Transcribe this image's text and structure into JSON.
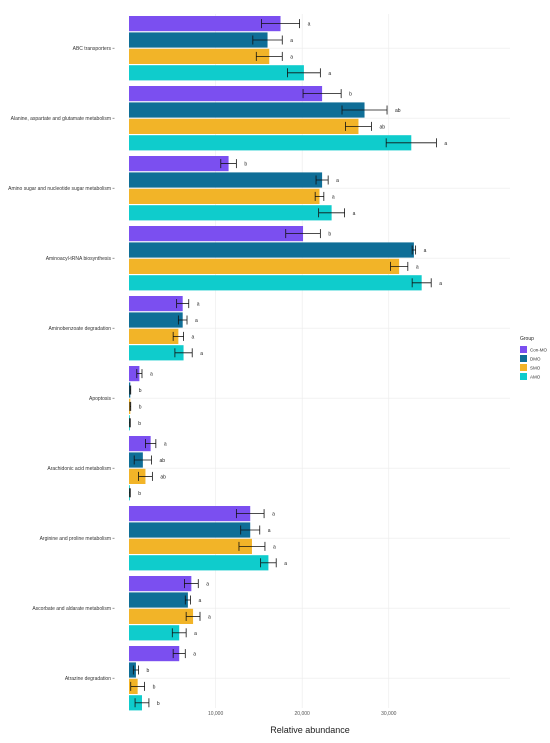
{
  "chart_data": {
    "type": "bar",
    "orientation": "horizontal",
    "xlabel": "Relative abundance",
    "xlim": [
      0,
      44000
    ],
    "xticks": [
      "10,000",
      "20,000",
      "30,000"
    ],
    "xtick_values": [
      10000,
      20000,
      30000
    ],
    "grid": true,
    "legend": {
      "title": "Group",
      "placement": "right"
    },
    "categories": [
      "ABC transporters",
      "Alanine, aspartate and glutamate metabolism",
      "Amino sugar and nucleotide sugar metabolism",
      "Aminoacyl-tRNA biosynthesis",
      "Aminobenzoate degradation",
      "Apoptosis",
      "Arachidonic acid metabolism",
      "Arginine and proline metabolism",
      "Ascorbate and aldarate metabolism",
      "Atrazine degradation"
    ],
    "series": [
      {
        "name": "Con-MO",
        "color": "#7b4ff0",
        "values": [
          17500,
          22300,
          11500,
          20100,
          6200,
          1200,
          2500,
          14000,
          7200,
          5800
        ],
        "errors": [
          2200,
          2200,
          900,
          2000,
          700,
          300,
          600,
          1600,
          800,
          700
        ],
        "labels": [
          "a",
          "b",
          "b",
          "b",
          "a",
          "a",
          "a",
          "a",
          "a",
          "a"
        ]
      },
      {
        "name": "DMO",
        "color": "#0f6e97",
        "values": [
          16000,
          27200,
          22300,
          32900,
          6200,
          150,
          1600,
          14000,
          6800,
          800
        ],
        "errors": [
          1700,
          2600,
          700,
          200,
          500,
          50,
          1000,
          1100,
          300,
          300
        ],
        "labels": [
          "a",
          "ab",
          "a",
          "a",
          "a",
          "b",
          "ab",
          "a",
          "a",
          "b"
        ]
      },
      {
        "name": "SMO",
        "color": "#f2b428",
        "values": [
          16200,
          26500,
          22000,
          31200,
          5700,
          150,
          1900,
          14200,
          7400,
          1000
        ],
        "errors": [
          1500,
          1500,
          500,
          1000,
          600,
          50,
          800,
          1500,
          800,
          800
        ],
        "labels": [
          "a",
          "ab",
          "a",
          "a",
          "a",
          "b",
          "ab",
          "a",
          "a",
          "b"
        ]
      },
      {
        "name": "AMO",
        "color": "#0fcccc",
        "values": [
          20200,
          32600,
          23400,
          33800,
          6300,
          100,
          100,
          16100,
          5800,
          1500
        ],
        "errors": [
          1900,
          2900,
          1500,
          1100,
          1000,
          50,
          50,
          900,
          800,
          800
        ],
        "labels": [
          "a",
          "a",
          "a",
          "a",
          "a",
          "b",
          "b",
          "a",
          "a",
          "b"
        ]
      }
    ]
  }
}
